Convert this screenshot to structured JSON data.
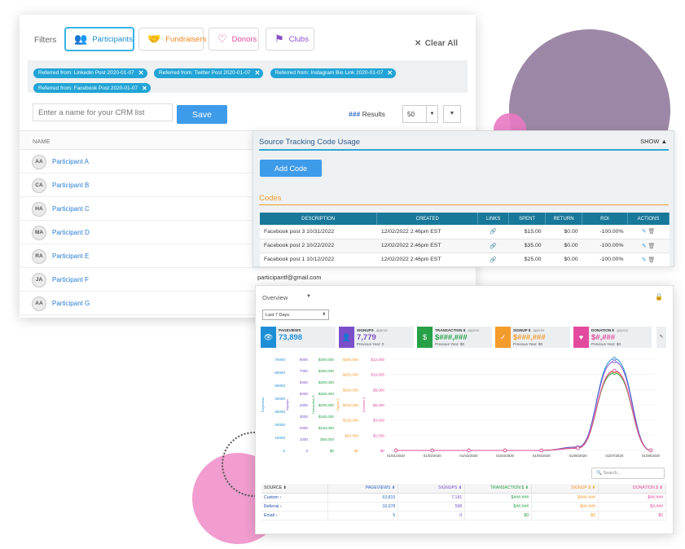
{
  "filters": {
    "label": "Filters",
    "tabs": [
      {
        "label": "Participants",
        "icon": "participants-icon"
      },
      {
        "label": "Fundraisers",
        "icon": "handshake-icon"
      },
      {
        "label": "Donors",
        "icon": "donor-hand-icon"
      },
      {
        "label": "Clubs",
        "icon": "clubs-icon"
      }
    ],
    "clear_all": "Clear All",
    "chips": [
      "Referred from: Linkedin Post 2020-01-07",
      "Referred from: Twitter Post 2020-01-07",
      "Referred from: Instagram Bio Link 2020-01-07",
      "Referred from: Facebook Post 2020-01-07"
    ]
  },
  "crm": {
    "placeholder": "Enter a name for your CRM list",
    "save_label": "Save",
    "results_count": "###",
    "results_label": "Results",
    "page_size": "50",
    "name_header": "NAME",
    "participants": [
      {
        "initials": "AA",
        "name": "Participant A"
      },
      {
        "initials": "CA",
        "name": "Participant B"
      },
      {
        "initials": "HA",
        "name": "Participant C"
      },
      {
        "initials": "MA",
        "name": "Participant D"
      },
      {
        "initials": "RA",
        "name": "Participant E"
      },
      {
        "initials": "JA",
        "name": "Participant F"
      },
      {
        "initials": "AA",
        "name": "Participant G"
      }
    ]
  },
  "tracking": {
    "title": "Source Tracking Code Usage",
    "show_label": "SHOW",
    "add_code_label": "Add Code",
    "codes_label": "Codes",
    "columns": [
      "DESCRIPTION",
      "CREATED",
      "LINKS",
      "SPENT",
      "RETURN",
      "ROI",
      "ACTIONS"
    ],
    "rows": [
      {
        "description": "Facebook post 3 10/31/2022",
        "created": "12/02/2022 2:46pm EST",
        "spent": "$15.00",
        "return": "$0.00",
        "roi": "-100.00%"
      },
      {
        "description": "Facebook post 2 10/22/2022",
        "created": "12/02/2022 2:46pm EST",
        "spent": "$35.00",
        "return": "$0.00",
        "roi": "-100.00%"
      },
      {
        "description": "Facebook post 1 10/12/2022",
        "created": "12/02/2022 2:46pm EST",
        "spent": "$25.00",
        "return": "$0.00",
        "roi": "-100.00%"
      }
    ]
  },
  "email": "participantf@gmail.com",
  "dashboard": {
    "overview_label": "Overview",
    "range_label": "Last 7 Days",
    "kpis": [
      {
        "label": "PAGEVIEWS",
        "note": "",
        "value": "73,898",
        "prev": "",
        "color": "#1e8fd6",
        "icon": "eye-icon"
      },
      {
        "label": "SIGNUPS",
        "note": "approx",
        "value": "7,779",
        "prev": "Previous Year: 0",
        "color": "#7b4fc9",
        "icon": "user-icon"
      },
      {
        "label": "TRANSACTION $",
        "note": "approx",
        "value": "$###,###",
        "prev": "Previous Year: $0",
        "color": "#27a047",
        "icon": "dollar-icon"
      },
      {
        "label": "SIGNUP $",
        "note": "approx",
        "value": "$###,###",
        "prev": "Previous Year: $0",
        "color": "#f39b2b",
        "icon": "check-icon"
      },
      {
        "label": "DONATION $",
        "note": "approx",
        "value": "$#,###",
        "prev": "Previous Year: $0",
        "color": "#e34a9d",
        "icon": "donation-icon"
      }
    ],
    "search_placeholder": "Search...",
    "table_headers": [
      "SOURCE",
      "PAGEVIEWS",
      "SIGNUPS",
      "TRANSACTION $",
      "SIGNUP $",
      "DONATION $"
    ],
    "table_rows": [
      {
        "source": "Custom",
        "pageviews": "63,815",
        "signups": "7,181",
        "transaction": "$###,###",
        "signup": "$###,###",
        "donation": "$##,###"
      },
      {
        "source": "Referral",
        "pageviews": "10,078",
        "signups": "598",
        "transaction": "$##,###",
        "signup": "$##,###",
        "donation": "$#,###"
      },
      {
        "source": "Email",
        "pageviews": "5",
        "signups": "0",
        "transaction": "$0",
        "signup": "$0",
        "donation": "$0"
      }
    ]
  },
  "chart_data": {
    "type": "line",
    "x": [
      "01/01/2020",
      "01/02/2020",
      "01/03/2020",
      "01/04/2020",
      "01/05/2020",
      "01/06/2020",
      "01/07/2020",
      "01/08/2020"
    ],
    "axes": [
      {
        "label": "Pageviews",
        "color": "#1e8fd6",
        "ticks": [
          "0",
          "10000",
          "20000",
          "30000",
          "40000",
          "50000",
          "60000",
          "70000"
        ]
      },
      {
        "label": "Signups",
        "color": "#7b4fc9",
        "ticks": [
          "0",
          "1000",
          "2000",
          "3000",
          "4000",
          "5000",
          "6000",
          "7000",
          "8000"
        ]
      },
      {
        "label": "Transaction $",
        "color": "#27a047",
        "ticks": [
          "$0",
          "$50,000",
          "$100,000",
          "$150,000",
          "$200,000",
          "$250,000",
          "$300,000",
          "$350,000",
          "$400,000"
        ]
      },
      {
        "label": "Signup $",
        "color": "#f39b2b",
        "ticks": [
          "$0",
          "$50,000",
          "$100,000",
          "$150,000",
          "$200,000",
          "$250,000",
          "$300,000"
        ]
      },
      {
        "label": "Donation $",
        "color": "#e34a9d",
        "ticks": [
          "$0",
          "$2,000",
          "$4,000",
          "$6,000",
          "$8,000",
          "$10,000",
          "$12,000"
        ]
      }
    ],
    "series": [
      {
        "name": "Pageviews",
        "color": "#1e8fd6",
        "values": [
          0,
          0,
          0,
          0,
          0,
          2500,
          70500,
          0
        ]
      },
      {
        "name": "Signups",
        "color": "#7b4fc9",
        "values": [
          0,
          0,
          0,
          0,
          0,
          300,
          7800,
          0
        ]
      },
      {
        "name": "Transaction $",
        "color": "#27a047",
        "values": [
          0,
          0,
          0,
          0,
          0,
          10000,
          340000,
          0
        ]
      },
      {
        "name": "Signup $",
        "color": "#f39b2b",
        "values": [
          0,
          0,
          0,
          0,
          0,
          8000,
          260000,
          0
        ]
      },
      {
        "name": "Donation $",
        "color": "#e34a9d",
        "values": [
          0,
          0,
          0,
          0,
          0,
          300,
          10500,
          0
        ]
      }
    ],
    "grid": true
  }
}
